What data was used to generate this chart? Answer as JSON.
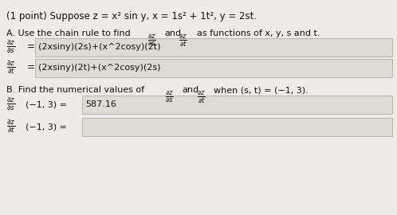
{
  "bg_color": "#eeece8",
  "text_color": "#111111",
  "box_color": "#dedad4",
  "box_edge_color": "#b8b4ac",
  "title": "(1 point) Suppose z = x² sin y, x = 1s² + 1t², y = 2st.",
  "secA": "A. Use the chain rule to find",
  "secA2": "as functions of x, y, s and t.",
  "eq1_rhs": "(2xsiny)(2s)+(x^2cosy)(2t)",
  "eq2_rhs": "(2xsiny)(2t)+(x^2cosy)(2s)",
  "secB": "B. Find the numerical values of",
  "secB2": "when (s, t) = (−1, 3).",
  "val1": "587.16"
}
